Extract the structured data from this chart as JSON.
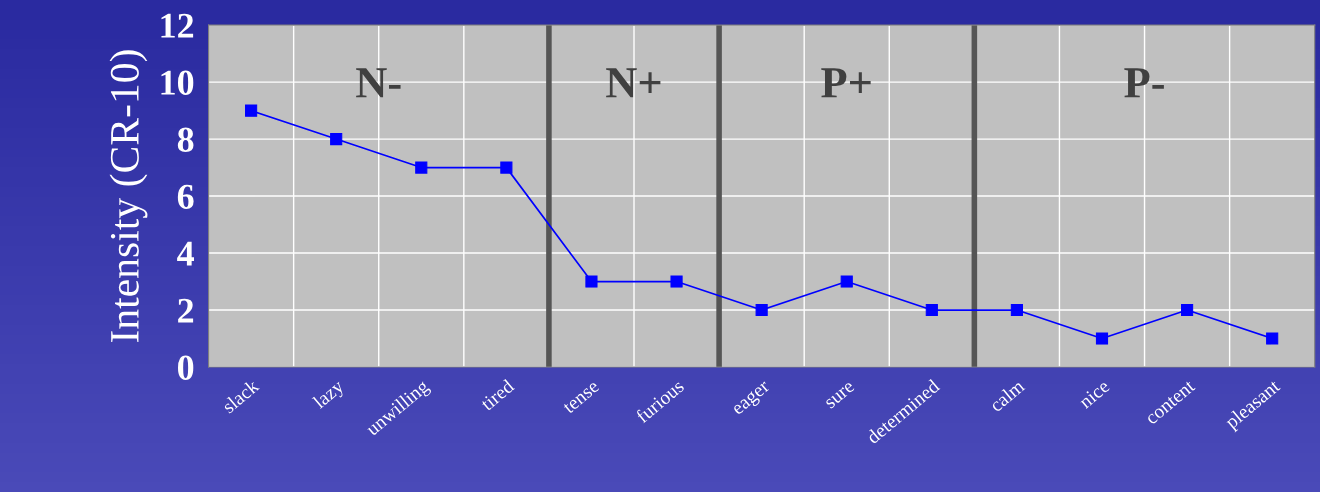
{
  "chart_data": {
    "type": "line",
    "ylabel": "Intensity (CR-10)",
    "categories": [
      "slack",
      "lazy",
      "unwilling",
      "tired",
      "tense",
      "furious",
      "eager",
      "sure",
      "determined",
      "calm",
      "nice",
      "content",
      "pleasant"
    ],
    "series": [
      {
        "color": "#0000ff",
        "values": [
          9,
          8,
          7,
          7,
          3,
          3,
          2,
          3,
          2,
          2,
          1,
          2,
          1
        ]
      }
    ],
    "ylim": [
      0,
      12
    ],
    "yticks": [
      0,
      2,
      4,
      6,
      8,
      10,
      12
    ],
    "grid": true,
    "marker": "square",
    "line_style": "solid",
    "legend": false,
    "annotations": [
      "N-",
      "N+",
      "P+",
      "P-"
    ]
  }
}
